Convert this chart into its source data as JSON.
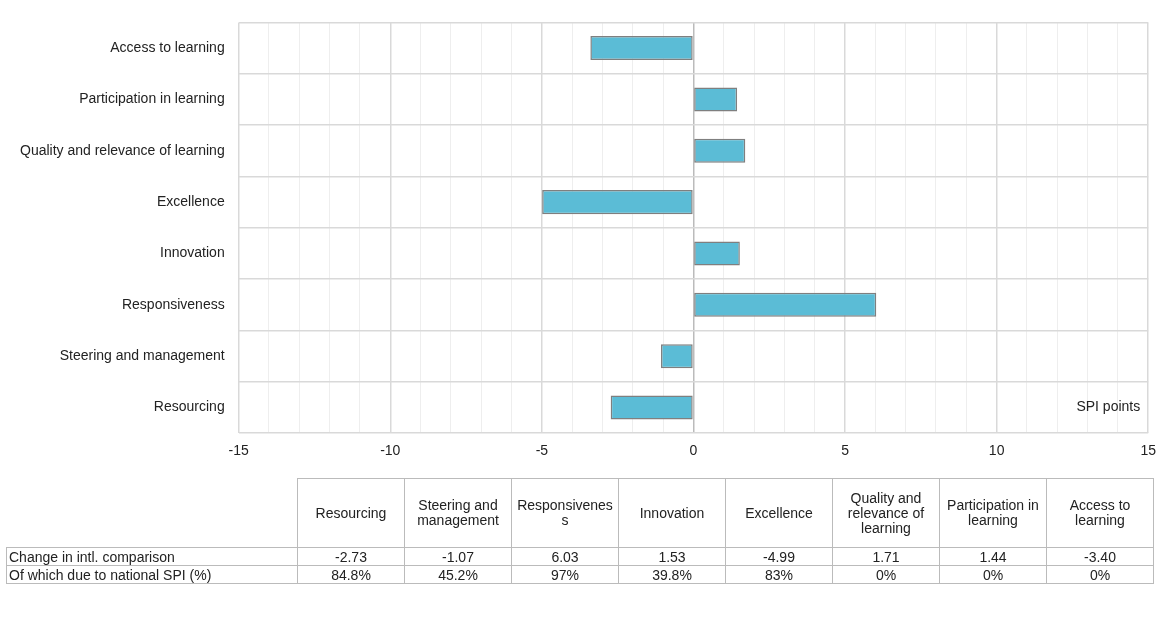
{
  "chart_data": {
    "type": "bar",
    "orientation": "horizontal",
    "categories": [
      "Access to learning",
      "Participation in learning",
      "Quality and relevance of learning",
      "Excellence",
      "Innovation",
      "Responsiveness",
      "Steering and management",
      "Resourcing"
    ],
    "series": [
      {
        "color": "#5bbcd6",
        "values": [
          -3.4,
          1.44,
          1.71,
          -4.99,
          1.53,
          6.03,
          -1.07,
          -2.73
        ]
      }
    ],
    "xlim": [
      -15,
      15
    ],
    "xticks": [
      -15,
      {
        "value": -14,
        "label": null
      },
      {
        "value": -13,
        "label": null
      },
      {
        "value": -12,
        "label": null
      },
      {
        "value": -11,
        "label": null
      },
      -10,
      {
        "value": -9,
        "label": null
      },
      {
        "value": -8,
        "label": null
      },
      {
        "value": -7,
        "label": null
      },
      {
        "value": -6,
        "label": null
      },
      -5,
      {
        "value": -4,
        "label": null
      },
      {
        "value": -3,
        "label": null
      },
      {
        "value": -2,
        "label": null
      },
      {
        "value": -1,
        "label": null
      },
      0,
      {
        "value": 1,
        "label": null
      },
      {
        "value": 2,
        "label": null
      },
      {
        "value": 3,
        "label": null
      },
      {
        "value": 4,
        "label": null
      },
      5,
      {
        "value": 6,
        "label": null
      },
      {
        "value": 7,
        "label": null
      },
      {
        "value": 8,
        "label": null
      },
      {
        "value": 9,
        "label": null
      },
      10,
      {
        "value": 11,
        "label": null
      },
      {
        "value": 12,
        "label": null
      },
      {
        "value": 13,
        "label": null
      },
      {
        "value": 14,
        "label": null
      },
      15
    ],
    "grid": true,
    "legend": false,
    "annotations": [
      "SPI points",
      "Change in intl. comparison",
      "-2.73",
      "-1.07",
      "6.03",
      "1.53",
      "-4.99",
      "1.71",
      "1.44",
      "-3.40",
      "Of which due to national SPI (%)",
      "84.8%",
      "45.2%",
      "97%",
      "39.8%",
      "83%",
      "0%",
      "0%",
      "0%"
    ]
  }
}
